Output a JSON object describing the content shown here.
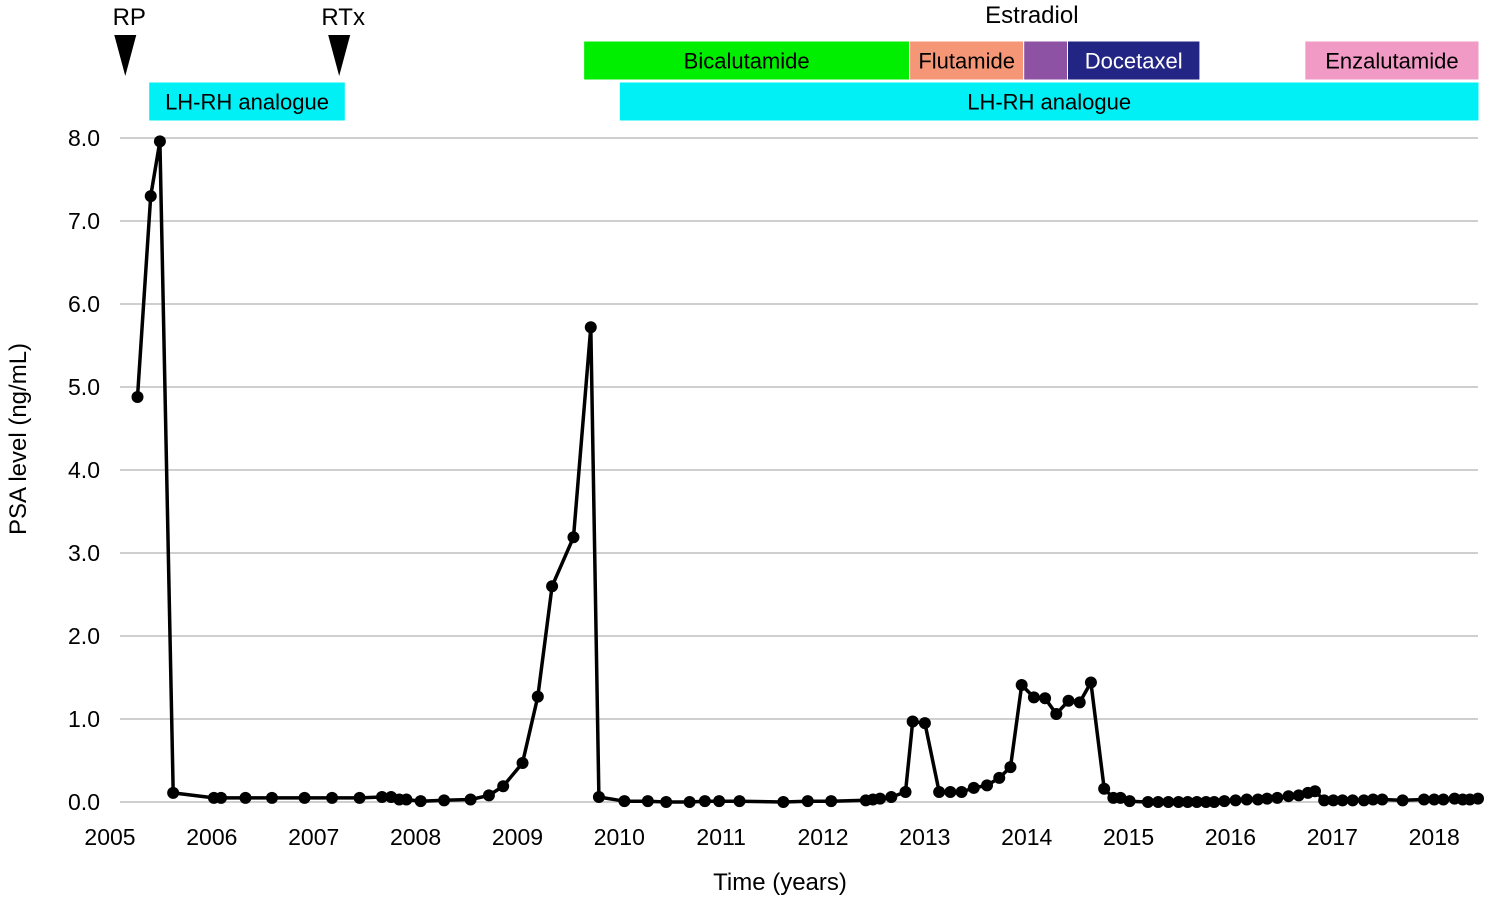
{
  "chart_data": {
    "type": "line",
    "xlabel": "Time (years)",
    "ylabel": "PSA level (ng/mL)",
    "xlim": [
      2005,
      2018.43
    ],
    "ylim": [
      0,
      8
    ],
    "grid": "horizontal",
    "x_ticks": [
      2005,
      2006,
      2007,
      2008,
      2009,
      2010,
      2011,
      2012,
      2013,
      2014,
      2015,
      2016,
      2017,
      2018
    ],
    "x_tick_labels": [
      "2005",
      "2006",
      "2007",
      "2008",
      "2009",
      "2010",
      "2011",
      "2012",
      "2013",
      "2014",
      "2015",
      "2016",
      "2017",
      "2018"
    ],
    "y_ticks": [
      0,
      1,
      2,
      3,
      4,
      5,
      6,
      7,
      8
    ],
    "y_tick_labels": [
      "0.0",
      "1.0",
      "2.0",
      "3.0",
      "4.0",
      "5.0",
      "6.0",
      "7.0",
      "8.0"
    ],
    "series": [
      {
        "color": "#000000",
        "x": [
          2005.27,
          2005.4,
          2005.49,
          2005.62,
          2006.02,
          2006.09,
          2006.33,
          2006.59,
          2006.91,
          2007.18,
          2007.45,
          2007.67,
          2007.76,
          2007.84,
          2007.91,
          2008.05,
          2008.28,
          2008.54,
          2008.72,
          2008.86,
          2009.05,
          2009.2,
          2009.34,
          2009.55,
          2009.72,
          2009.8,
          2010.05,
          2010.28,
          2010.46,
          2010.69,
          2010.84,
          2010.98,
          2011.18,
          2011.61,
          2011.85,
          2012.08,
          2012.42,
          2012.49,
          2012.56,
          2012.67,
          2012.81,
          2012.88,
          2013.0,
          2013.14,
          2013.25,
          2013.36,
          2013.48,
          2013.61,
          2013.73,
          2013.84,
          2013.95,
          2014.07,
          2014.18,
          2014.29,
          2014.41,
          2014.52,
          2014.63,
          2014.76,
          2014.85,
          2014.92,
          2015.01,
          2015.19,
          2015.29,
          2015.39,
          2015.49,
          2015.58,
          2015.67,
          2015.76,
          2015.84,
          2015.94,
          2016.05,
          2016.16,
          2016.27,
          2016.36,
          2016.46,
          2016.57,
          2016.67,
          2016.76,
          2016.83,
          2016.92,
          2017.01,
          2017.1,
          2017.2,
          2017.31,
          2017.4,
          2017.49,
          2017.69,
          2017.9,
          2018.0,
          2018.09,
          2018.2,
          2018.28,
          2018.35,
          2018.43
        ],
        "y": [
          4.88,
          7.3,
          7.96,
          0.11,
          0.05,
          0.05,
          0.05,
          0.05,
          0.05,
          0.05,
          0.05,
          0.06,
          0.06,
          0.03,
          0.03,
          0.01,
          0.02,
          0.03,
          0.08,
          0.19,
          0.47,
          1.27,
          2.6,
          3.19,
          5.72,
          0.06,
          0.01,
          0.01,
          0.0,
          0.0,
          0.01,
          0.01,
          0.01,
          0.0,
          0.01,
          0.01,
          0.02,
          0.03,
          0.04,
          0.06,
          0.12,
          0.97,
          0.95,
          0.12,
          0.12,
          0.12,
          0.17,
          0.2,
          0.29,
          0.42,
          1.41,
          1.26,
          1.25,
          1.06,
          1.22,
          1.2,
          1.44,
          0.16,
          0.05,
          0.05,
          0.01,
          0.0,
          0.0,
          0.0,
          0.0,
          0.0,
          0.0,
          0.0,
          0.0,
          0.01,
          0.02,
          0.03,
          0.03,
          0.04,
          0.05,
          0.07,
          0.08,
          0.11,
          0.13,
          0.02,
          0.02,
          0.02,
          0.02,
          0.02,
          0.03,
          0.03,
          0.02,
          0.03,
          0.03,
          0.03,
          0.04,
          0.03,
          0.03,
          0.04
        ]
      }
    ],
    "event_markers": [
      {
        "label": "RP",
        "x": 2005.15
      },
      {
        "label": "RTx",
        "x": 2007.25
      }
    ],
    "treatments_upper": [
      {
        "label": "Bicalutamide",
        "start": 2009.65,
        "end": 2012.85,
        "color": "#00ee00",
        "text_color": "#000000"
      },
      {
        "label": "Flutamide",
        "start": 2012.85,
        "end": 2013.97,
        "color": "#f59777",
        "text_color": "#000000"
      },
      {
        "label": "",
        "start": 2013.97,
        "end": 2014.4,
        "color": "#8e52a4",
        "text_color": "#000000"
      },
      {
        "label": "Docetaxel",
        "start": 2014.4,
        "end": 2015.7,
        "color": "#232584",
        "text_color": "#ffffff"
      },
      {
        "label": "Enzalutamide",
        "start": 2016.73,
        "end": 2018.52,
        "color": "#f09ac5",
        "text_color": "#000000"
      }
    ],
    "treatment_above_label": {
      "label": "Estradiol",
      "x": 2014.05
    },
    "treatments_lower": [
      {
        "label": "LH-RH analogue",
        "start": 2005.38,
        "end": 2007.31,
        "color": "#00f0f5",
        "text_color": "#000000"
      },
      {
        "label": "LH-RH analogue",
        "start": 2010.0,
        "end": 2018.52,
        "color": "#00f0f5",
        "text_color": "#000000"
      }
    ]
  }
}
